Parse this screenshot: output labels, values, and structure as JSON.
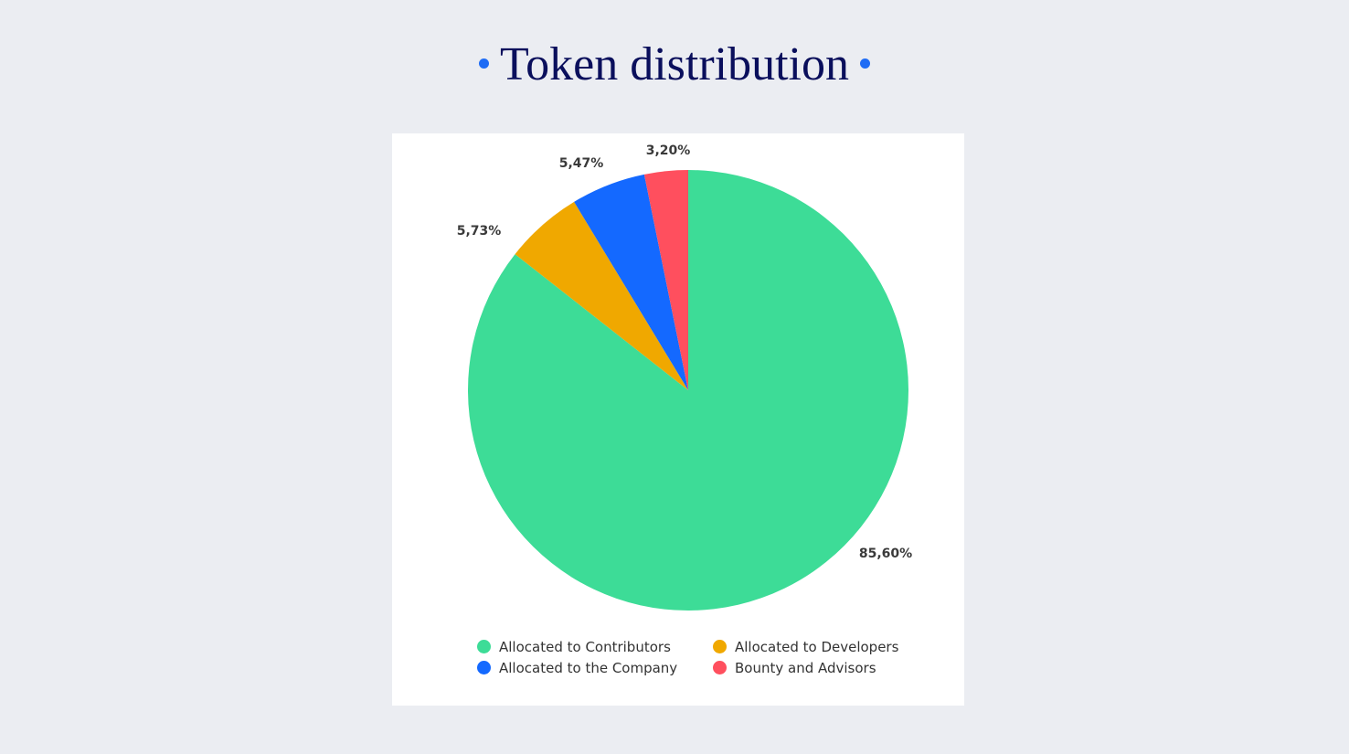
{
  "page": {
    "title": "Token distribution",
    "background": "#ebedf2",
    "title_color": "#0a0f5c",
    "accent_dot_color": "#1f6cf5"
  },
  "chart_data": {
    "type": "pie",
    "title": "Token distribution",
    "start": "12 o'clock",
    "direction": "clockwise",
    "legend_position": "bottom",
    "slices": [
      {
        "name": "Allocated to Contributors",
        "value": 85.6,
        "label": "85,60%",
        "color": "#3ddc97"
      },
      {
        "name": "Allocated to Developers",
        "value": 5.73,
        "label": "5,73%",
        "color": "#f0a800"
      },
      {
        "name": "Allocated to the Company",
        "value": 5.47,
        "label": "5,47%",
        "color": "#1469ff"
      },
      {
        "name": "Bounty and Advisors",
        "value": 3.2,
        "label": "3,20%",
        "color": "#ff4f5e"
      }
    ],
    "legend": [
      "Allocated to Contributors",
      "Allocated to Developers",
      "Allocated to the Company",
      "Bounty and Advisors"
    ]
  }
}
